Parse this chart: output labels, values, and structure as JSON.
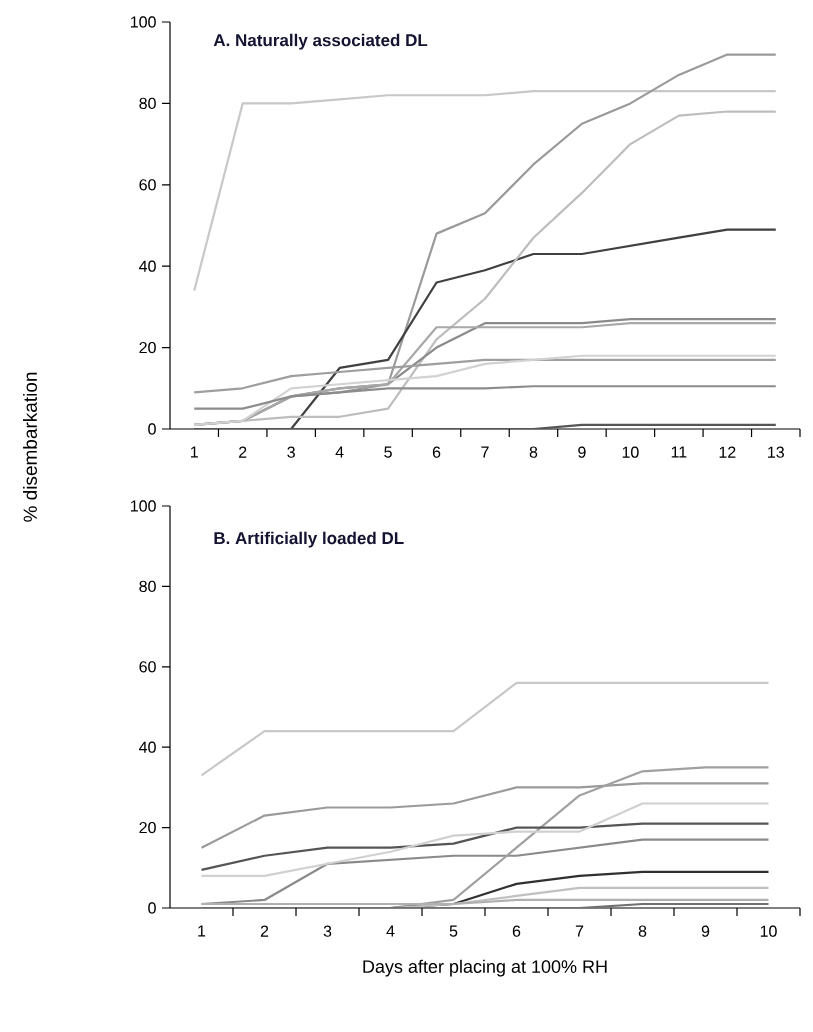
{
  "chart_data": [
    {
      "type": "line",
      "title": "A. Naturally associated DL",
      "ylabel": "% disembarkation",
      "line_style": "solid",
      "categories": [
        "1",
        "2",
        "3",
        "4",
        "5",
        "6",
        "7",
        "8",
        "9",
        "10",
        "11",
        "12",
        "13"
      ],
      "ylim": [
        0,
        100
      ],
      "yticks": [
        0,
        20,
        40,
        60,
        80,
        100
      ],
      "series": [
        {
          "color": "#c8c8c8",
          "values": [
            34,
            80,
            80,
            81,
            82,
            82,
            82,
            83,
            83,
            83,
            83,
            83,
            83
          ]
        },
        {
          "color": "#9a9a9a",
          "values": [
            1,
            2,
            8,
            9,
            11,
            48,
            53,
            65,
            75,
            80,
            87,
            92,
            92
          ]
        },
        {
          "color": "#404040",
          "values": [
            0,
            0,
            0,
            15,
            17,
            36,
            39,
            43,
            43,
            45,
            47,
            49,
            49
          ]
        },
        {
          "color": "#bdbdbd",
          "values": [
            1,
            2,
            3,
            3,
            5,
            22,
            32,
            47,
            58,
            70,
            77,
            78,
            78
          ]
        },
        {
          "color": "#8a8a8a",
          "values": [
            1,
            2,
            8,
            10,
            11,
            20,
            26,
            26,
            26,
            27,
            27,
            27,
            27
          ]
        },
        {
          "color": "#a8a8a8",
          "values": [
            1,
            2,
            8,
            10,
            11,
            25,
            25,
            25,
            25,
            26,
            26,
            26,
            26
          ]
        },
        {
          "color": "#9e9e9e",
          "values": [
            9,
            10,
            13,
            14,
            15,
            16,
            17,
            17,
            17,
            17,
            17,
            17,
            17
          ]
        },
        {
          "color": "#d2d2d2",
          "values": [
            1,
            2,
            10,
            11,
            12,
            13,
            16,
            17,
            18,
            18,
            18,
            18,
            18
          ]
        },
        {
          "color": "#8c8c8c",
          "values": [
            5,
            5,
            8,
            9,
            10,
            10,
            10,
            10.5,
            10.5,
            10.5,
            10.5,
            10.5,
            10.5
          ]
        },
        {
          "color": "#555555",
          "values": [
            0,
            0,
            0,
            0,
            0,
            0,
            0,
            0,
            1,
            1,
            1,
            1,
            1
          ]
        }
      ]
    },
    {
      "type": "line",
      "title": "B. Artificially loaded DL",
      "xlabel": "Days after placing at 100% RH",
      "line_style": "solid",
      "categories": [
        "1",
        "2",
        "3",
        "4",
        "5",
        "6",
        "7",
        "8",
        "9",
        "10"
      ],
      "ylim": [
        0,
        100
      ],
      "yticks": [
        0,
        20,
        40,
        60,
        80,
        100
      ],
      "series": [
        {
          "color": "#c8c8c8",
          "values": [
            33,
            44,
            44,
            44,
            44,
            56,
            56,
            56,
            56,
            56
          ]
        },
        {
          "color": "#9a9a9a",
          "values": [
            15,
            23,
            25,
            25,
            26,
            30,
            30,
            31,
            31,
            31
          ]
        },
        {
          "color": "#8a8a8a",
          "values": [
            1,
            2,
            11,
            12,
            13,
            13,
            15,
            17,
            17,
            17
          ]
        },
        {
          "color": "#a0a0a0",
          "values": [
            0,
            0,
            0,
            0,
            2,
            15,
            28,
            34,
            35,
            35
          ]
        },
        {
          "color": "#555555",
          "values": [
            9.5,
            13,
            15,
            15,
            16,
            20,
            20,
            21,
            21,
            21
          ]
        },
        {
          "color": "#d0d0d0",
          "values": [
            8,
            8,
            11,
            14,
            18,
            19,
            19,
            26,
            26,
            26
          ]
        },
        {
          "color": "#303030",
          "values": [
            0,
            0,
            0,
            0,
            1,
            6,
            8,
            9,
            9,
            9
          ]
        },
        {
          "color": "#c0c0c0",
          "values": [
            0,
            0,
            0,
            0,
            1,
            3,
            5,
            5,
            5,
            5
          ]
        },
        {
          "color": "#b0b0b0",
          "values": [
            1,
            1,
            1,
            1,
            1,
            2,
            2,
            2,
            2,
            2
          ]
        },
        {
          "color": "#707070",
          "values": [
            0,
            0,
            0,
            0,
            0,
            0,
            0,
            1,
            1,
            1
          ]
        }
      ]
    }
  ]
}
